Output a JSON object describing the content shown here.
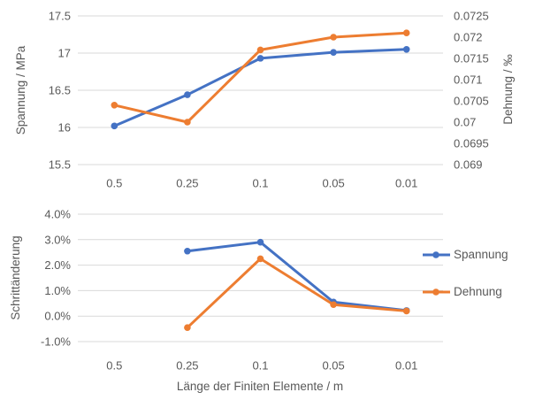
{
  "colors": {
    "spannung": "#4472C4",
    "dehnung": "#ED7D31",
    "grid": "#D9D9D9",
    "text": "#595959"
  },
  "chart_data": [
    {
      "type": "line",
      "categories": [
        "0.5",
        "0.25",
        "0.1",
        "0.05",
        "0.01"
      ],
      "series": [
        {
          "name": "Spannung",
          "axis": "left",
          "color": "#4472C4",
          "values": [
            16.02,
            16.44,
            16.93,
            17.01,
            17.05
          ]
        },
        {
          "name": "Dehnung",
          "axis": "right",
          "color": "#ED7D31",
          "values": [
            0.0704,
            0.07,
            0.0717,
            0.072,
            0.0721
          ]
        }
      ],
      "left_axis": {
        "label": "Spannung / MPa",
        "ticks": [
          "17.5",
          "17",
          "16.5",
          "16",
          "15.5"
        ],
        "max": 17.5,
        "min": 15.5
      },
      "right_axis": {
        "label": "Dehnung / ‰",
        "ticks": [
          "0.0725",
          "0.072",
          "0.0715",
          "0.071",
          "0.0705",
          "0.07",
          "0.0695",
          "0.069"
        ],
        "max": 0.0725,
        "min": 0.069
      },
      "grid": true,
      "legend": "none"
    },
    {
      "type": "line",
      "categories": [
        "0.5",
        "0.25",
        "0.1",
        "0.05",
        "0.01"
      ],
      "series": [
        {
          "name": "Spannung",
          "color": "#4472C4",
          "values": [
            null,
            2.55,
            2.9,
            0.55,
            0.22
          ]
        },
        {
          "name": "Dehnung",
          "color": "#ED7D31",
          "values": [
            null,
            -0.45,
            2.25,
            0.45,
            0.2
          ]
        }
      ],
      "y_axis": {
        "label": "Schrittänderung",
        "ticks": [
          "4.0%",
          "3.0%",
          "2.0%",
          "1.0%",
          "0.0%",
          "-1.0%"
        ],
        "max": 4.0,
        "min": -1.0
      },
      "xlabel": "Länge der Finiten Elemente / m",
      "grid": true,
      "legend_position": "right"
    }
  ]
}
